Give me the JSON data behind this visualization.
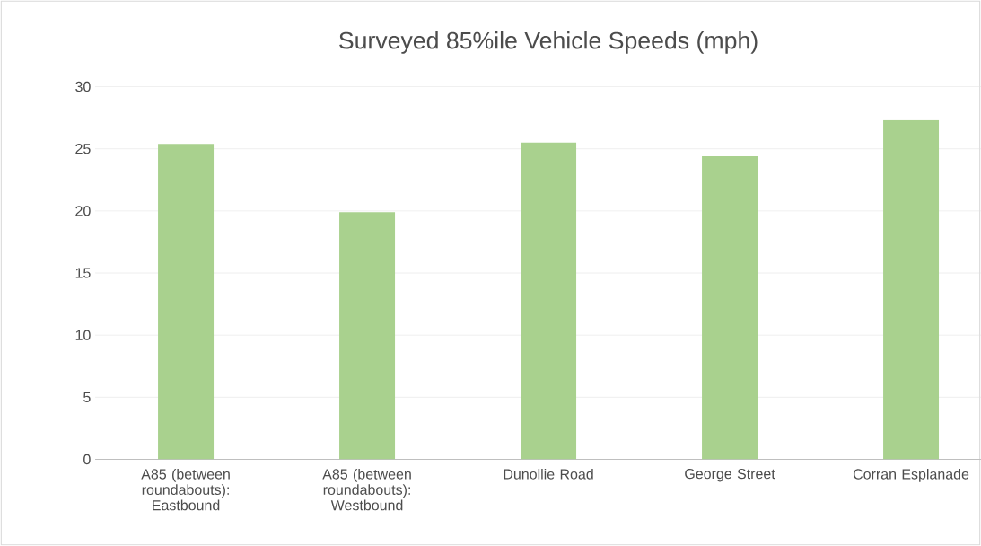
{
  "chart_data": {
    "type": "bar",
    "title": "Surveyed 85%ile Vehicle Speeds (mph)",
    "categories": [
      "A85 (between roundabouts): Eastbound",
      "A85 (between roundabouts): Westbound",
      "Dunollie Road",
      "George Street",
      "Corran Esplanade"
    ],
    "values": [
      25.4,
      19.9,
      25.5,
      24.4,
      27.3
    ],
    "color": "#a9d18e",
    "ylim": [
      0,
      30
    ],
    "yticks": [
      0,
      5,
      10,
      15,
      20,
      25,
      30
    ],
    "grid": "y"
  }
}
